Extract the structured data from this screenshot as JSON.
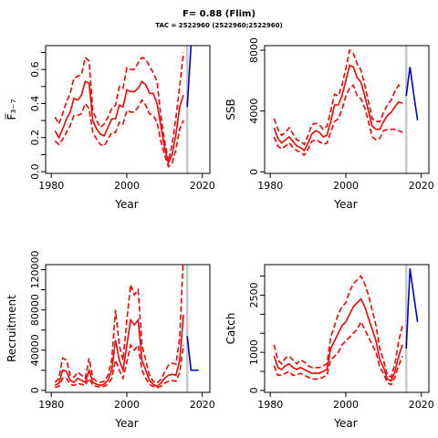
{
  "title": "F= 0.88 (Flim)",
  "subtitle": "TAC = 2522960 (2522960;2522960)",
  "chart_data": [
    {
      "type": "line",
      "id": "fbar",
      "ylabel": "F̅₃₋₇",
      "xlabel": "Year",
      "xlim": [
        1978.5,
        2022
      ],
      "ylim": [
        -0.01,
        0.74
      ],
      "xticks": [
        1980,
        2000,
        2020
      ],
      "yticks": [
        0,
        0.1,
        0.2,
        0.3,
        0.4,
        0.5,
        0.6,
        0.7
      ],
      "ytick_labels": [
        "0.0",
        "",
        "0.2",
        "",
        "0.4",
        "",
        "0.6",
        ""
      ],
      "vline": 2016,
      "x_hist": [
        1981,
        1982,
        1983,
        1984,
        1985,
        1986,
        1987,
        1988,
        1989,
        1990,
        1991,
        1992,
        1993,
        1994,
        1995,
        1996,
        1997,
        1998,
        1999,
        2000,
        2001,
        2002,
        2003,
        2004,
        2005,
        2006,
        2007,
        2008,
        2009,
        2010,
        2011,
        2012,
        2013,
        2014,
        2015
      ],
      "hist_median": [
        0.24,
        0.2,
        0.25,
        0.31,
        0.35,
        0.43,
        0.42,
        0.45,
        0.53,
        0.52,
        0.3,
        0.25,
        0.22,
        0.21,
        0.26,
        0.31,
        0.31,
        0.39,
        0.38,
        0.48,
        0.47,
        0.47,
        0.49,
        0.53,
        0.51,
        0.46,
        0.46,
        0.4,
        0.27,
        0.14,
        0.05,
        0.1,
        0.22,
        0.38,
        0.45
      ],
      "hist_upper": [
        0.32,
        0.28,
        0.34,
        0.41,
        0.46,
        0.55,
        0.56,
        0.57,
        0.67,
        0.65,
        0.36,
        0.3,
        0.26,
        0.28,
        0.32,
        0.37,
        0.39,
        0.5,
        0.49,
        0.61,
        0.6,
        0.6,
        0.64,
        0.67,
        0.66,
        0.62,
        0.58,
        0.53,
        0.33,
        0.18,
        0.06,
        0.16,
        0.32,
        0.5,
        0.7
      ],
      "hist_lower": [
        0.18,
        0.16,
        0.19,
        0.23,
        0.27,
        0.33,
        0.33,
        0.34,
        0.4,
        0.37,
        0.23,
        0.19,
        0.16,
        0.15,
        0.19,
        0.23,
        0.23,
        0.29,
        0.28,
        0.36,
        0.35,
        0.35,
        0.38,
        0.42,
        0.39,
        0.34,
        0.33,
        0.29,
        0.18,
        0.1,
        0.03,
        0.05,
        0.13,
        0.25,
        0.3
      ],
      "x_proj": [
        2016,
        2017
      ],
      "proj_median": [
        0.38,
        0.74
      ]
    },
    {
      "type": "line",
      "id": "ssb",
      "ylabel": "SSB",
      "xlabel": "Year",
      "xlim": [
        1978.5,
        2022
      ],
      "ylim": [
        -100,
        8300
      ],
      "xticks": [
        1980,
        2000,
        2020
      ],
      "yticks": [
        0,
        4000,
        8000
      ],
      "ytick_labels": [
        "0",
        "4000",
        "8000"
      ],
      "vline": 2016,
      "x_hist": [
        1981,
        1982,
        1983,
        1984,
        1985,
        1986,
        1987,
        1988,
        1989,
        1990,
        1991,
        1992,
        1993,
        1994,
        1995,
        1996,
        1997,
        1998,
        1999,
        2000,
        2001,
        2002,
        2003,
        2004,
        2005,
        2006,
        2007,
        2008,
        2009,
        2010,
        2011,
        2012,
        2013,
        2014,
        2015
      ],
      "hist_median": [
        2900,
        2200,
        1900,
        2100,
        2300,
        2000,
        1700,
        1600,
        1400,
        1900,
        2500,
        2700,
        2600,
        2300,
        2400,
        3300,
        4400,
        4400,
        5000,
        6000,
        7000,
        6900,
        6200,
        5900,
        5000,
        4000,
        3000,
        2800,
        2800,
        3300,
        3700,
        3900,
        4300,
        4600,
        4500
      ],
      "hist_upper": [
        3500,
        2800,
        2400,
        2600,
        2900,
        2500,
        2100,
        2000,
        1800,
        2400,
        3100,
        3200,
        3100,
        2800,
        3000,
        4000,
        5100,
        5000,
        5700,
        6800,
        8000,
        7800,
        7100,
        6700,
        5700,
        4600,
        3500,
        3300,
        3300,
        3900,
        4400,
        4700,
        5300,
        5700,
        5600
      ],
      "hist_lower": [
        2300,
        1700,
        1500,
        1700,
        1900,
        1600,
        1400,
        1300,
        1100,
        1500,
        2000,
        2100,
        2000,
        1800,
        1900,
        2600,
        3300,
        3500,
        4100,
        5000,
        5500,
        5700,
        5000,
        4800,
        4200,
        3300,
        2300,
        2100,
        2200,
        2700,
        2800,
        2800,
        2800,
        2700,
        2600
      ],
      "x_proj": [
        2016,
        2017,
        2018,
        2019
      ],
      "proj_median": [
        5000,
        6900,
        5100,
        3400
      ]
    },
    {
      "type": "line",
      "id": "recruitment",
      "ylabel": "Recruitment",
      "xlabel": "Year",
      "xlim": [
        1978.5,
        2022
      ],
      "ylim": [
        -2000,
        125000
      ],
      "xticks": [
        1980,
        2000,
        2020
      ],
      "yticks": [
        0,
        20000,
        40000,
        60000,
        80000,
        100000,
        120000
      ],
      "ytick_labels": [
        "0",
        "",
        "40000",
        "",
        "80000",
        "",
        "120000"
      ],
      "vline": 2016,
      "x_hist": [
        1981,
        1982,
        1983,
        1984,
        1985,
        1986,
        1987,
        1988,
        1989,
        1990,
        1991,
        1992,
        1993,
        1994,
        1995,
        1996,
        1997,
        1998,
        1999,
        2000,
        2001,
        2002,
        2003,
        2004,
        2005,
        2006,
        2007,
        2008,
        2009,
        2010,
        2011,
        2012,
        2013,
        2014,
        2015
      ],
      "hist_median": [
        5000,
        7000,
        20000,
        19000,
        10000,
        8000,
        12000,
        10000,
        8000,
        20000,
        8000,
        6000,
        5000,
        6000,
        10000,
        20000,
        50000,
        30000,
        20000,
        45000,
        70000,
        65000,
        70000,
        30000,
        20000,
        10000,
        6000,
        4000,
        7000,
        12000,
        15000,
        16000,
        15000,
        30000,
        75000
      ],
      "hist_upper": [
        8000,
        12000,
        32000,
        30000,
        15000,
        13000,
        18000,
        15000,
        12000,
        32000,
        12000,
        9000,
        8000,
        9000,
        15000,
        30000,
        80000,
        45000,
        30000,
        70000,
        105000,
        95000,
        100000,
        45000,
        30000,
        15000,
        9000,
        7000,
        11000,
        18000,
        25000,
        27000,
        26000,
        52000,
        135000
      ],
      "hist_lower": [
        3000,
        4000,
        12000,
        12000,
        6000,
        5000,
        7000,
        6000,
        5000,
        12000,
        5000,
        4000,
        3000,
        4000,
        6000,
        12000,
        30000,
        20000,
        12000,
        28000,
        45000,
        40000,
        45000,
        20000,
        12000,
        6000,
        4000,
        2500,
        4000,
        7000,
        9000,
        10000,
        9000,
        18000,
        45000
      ],
      "x_proj": [
        2016,
        2017,
        2018,
        2019
      ],
      "proj_median": [
        54000,
        20000,
        20000,
        20000
      ]
    },
    {
      "type": "line",
      "id": "catch",
      "ylabel": "Catch",
      "xlabel": "Year",
      "xlim": [
        1978.5,
        2022
      ],
      "ylim": [
        -50,
        3300
      ],
      "xticks": [
        1980,
        2000,
        2020
      ],
      "yticks": [
        0,
        500,
        1000,
        1500,
        2000,
        2500,
        3000
      ],
      "ytick_labels": [
        "0",
        "",
        "1000",
        "",
        "",
        "2500",
        ""
      ],
      "vline": 2016,
      "x_hist": [
        1981,
        1982,
        1983,
        1984,
        1985,
        1986,
        1987,
        1988,
        1989,
        1990,
        1991,
        1992,
        1993,
        1994,
        1995,
        1996,
        1997,
        1998,
        1999,
        2000,
        2001,
        2002,
        2003,
        2004,
        2005,
        2006,
        2007,
        2008,
        2009,
        2010,
        2011,
        2012,
        2013,
        2014,
        2015
      ],
      "hist_median": [
        900,
        600,
        550,
        650,
        700,
        600,
        550,
        600,
        550,
        500,
        450,
        450,
        450,
        500,
        550,
        1100,
        1300,
        1500,
        1700,
        1800,
        2000,
        2200,
        2300,
        2400,
        2200,
        1900,
        1600,
        1300,
        800,
        600,
        300,
        250,
        500,
        900,
        1200
      ],
      "hist_upper": [
        1200,
        800,
        700,
        850,
        900,
        800,
        700,
        800,
        750,
        650,
        600,
        600,
        600,
        650,
        700,
        1400,
        1700,
        2000,
        2200,
        2300,
        2600,
        2800,
        2900,
        3000,
        2800,
        2500,
        2100,
        1700,
        1100,
        800,
        400,
        350,
        700,
        1300,
        1700
      ],
      "hist_lower": [
        650,
        400,
        400,
        450,
        500,
        400,
        400,
        450,
        400,
        350,
        300,
        300,
        300,
        350,
        400,
        800,
        900,
        1000,
        1200,
        1300,
        1400,
        1500,
        1600,
        1800,
        1600,
        1400,
        1200,
        1000,
        600,
        450,
        200,
        150,
        350,
        650,
        900
      ],
      "x_proj": [
        2016,
        2017,
        2018,
        2019
      ],
      "proj_median": [
        1100,
        3200,
        2500,
        1800
      ]
    }
  ],
  "colors": {
    "historical": "#ff0000",
    "projection": "#0000cc",
    "vline": "#c8c8c8"
  }
}
